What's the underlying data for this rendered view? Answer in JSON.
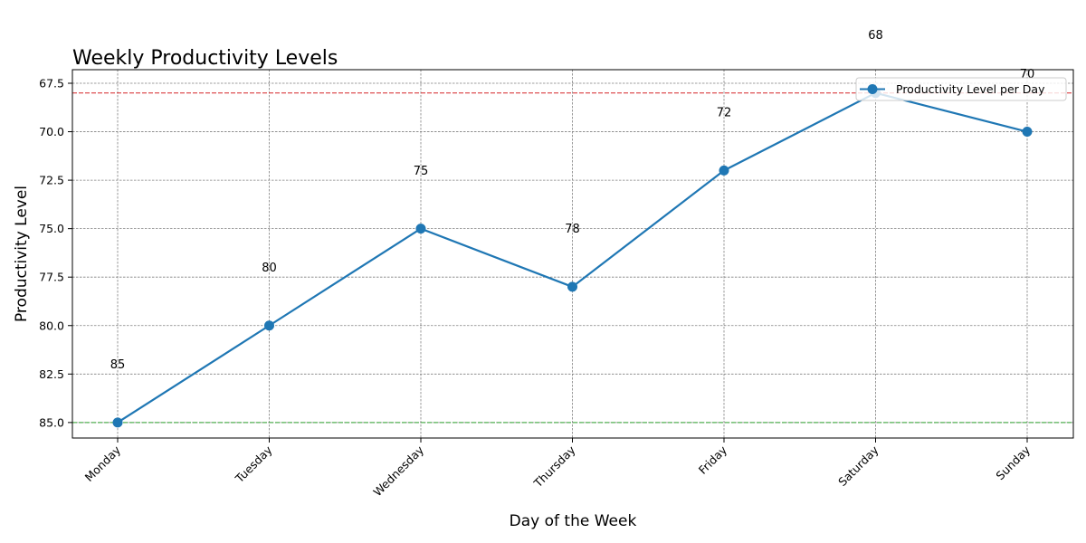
{
  "chart_data": {
    "type": "line",
    "title": "Weekly Productivity Levels",
    "xlabel": "Day of the Week",
    "ylabel": "Productivity Level",
    "categories": [
      "Monday",
      "Tuesday",
      "Wednesday",
      "Thursday",
      "Friday",
      "Saturday",
      "Sunday"
    ],
    "series": [
      {
        "name": "Productivity Level per Day",
        "values": [
          85,
          80,
          75,
          78,
          72,
          68,
          70
        ],
        "color": "#1f77b4",
        "marker": "circle"
      }
    ],
    "data_labels": [
      "85",
      "80",
      "75",
      "78",
      "72",
      "68",
      "70"
    ],
    "y_axis": {
      "inverted": true,
      "range": [
        85.8,
        66.8
      ],
      "ticks": [
        67.5,
        70.0,
        72.5,
        75.0,
        77.5,
        80.0,
        82.5,
        85.0
      ],
      "tick_labels": [
        "67.5",
        "70.0",
        "72.5",
        "75.0",
        "77.5",
        "80.0",
        "82.5",
        "85.0"
      ]
    },
    "reference_lines": [
      {
        "value": 68,
        "color": "#d62728",
        "style": "dashed"
      },
      {
        "value": 85,
        "color": "#2ca02c",
        "style": "dashed"
      }
    ],
    "grid": true,
    "legend_position": "top-right"
  }
}
